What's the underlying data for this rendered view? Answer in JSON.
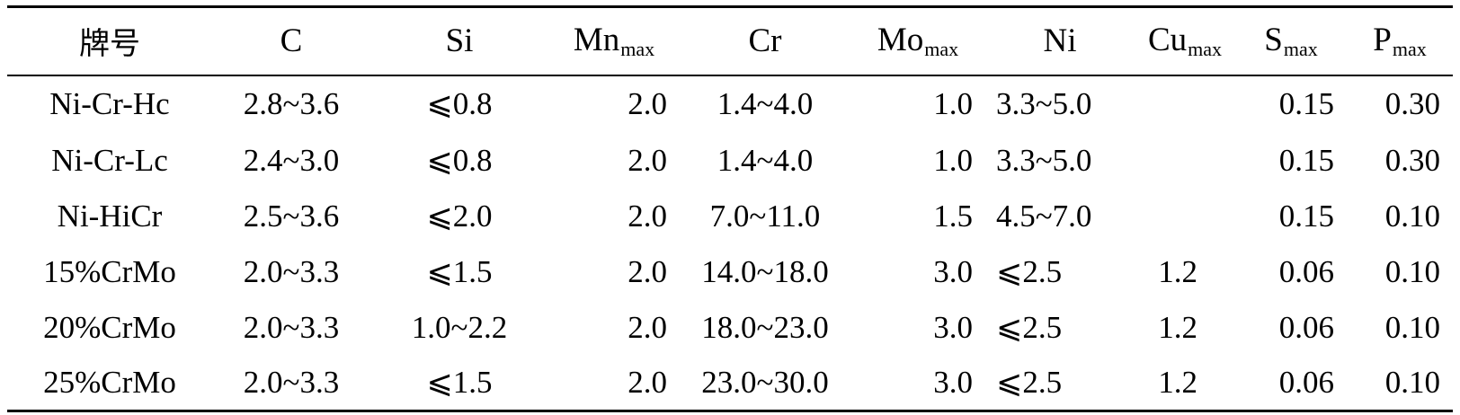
{
  "table": {
    "header": {
      "grade": "牌号",
      "c": "C",
      "si": "Si",
      "mn": "Mn",
      "mn_sub": "max",
      "cr": "Cr",
      "mo": "Mo",
      "mo_sub": "max",
      "ni": "Ni",
      "cu": "Cu",
      "cu_sub": "max",
      "s": "S",
      "s_sub": "max",
      "p": "P",
      "p_sub": "max"
    },
    "rows": [
      {
        "grade": "Ni-Cr-Hc",
        "c": "2.8~3.6",
        "si": "⩽0.8",
        "mn": "2.0",
        "cr": "1.4~4.0",
        "mo": "1.0",
        "ni": "3.3~5.0",
        "cu": "",
        "s": "0.15",
        "p": "0.30"
      },
      {
        "grade": "Ni-Cr-Lc",
        "c": "2.4~3.0",
        "si": "⩽0.8",
        "mn": "2.0",
        "cr": "1.4~4.0",
        "mo": "1.0",
        "ni": "3.3~5.0",
        "cu": "",
        "s": "0.15",
        "p": "0.30"
      },
      {
        "grade": "Ni-HiCr",
        "c": "2.5~3.6",
        "si": "⩽2.0",
        "mn": "2.0",
        "cr": "7.0~11.0",
        "mo": "1.5",
        "ni": "4.5~7.0",
        "cu": "",
        "s": "0.15",
        "p": "0.10"
      },
      {
        "grade": "15%CrMo",
        "c": "2.0~3.3",
        "si": "⩽1.5",
        "mn": "2.0",
        "cr": "14.0~18.0",
        "mo": "3.0",
        "ni": "⩽2.5",
        "cu": "1.2",
        "s": "0.06",
        "p": "0.10"
      },
      {
        "grade": "20%CrMo",
        "c": "2.0~3.3",
        "si": "1.0~2.2",
        "mn": "2.0",
        "cr": "18.0~23.0",
        "mo": "3.0",
        "ni": "⩽2.5",
        "cu": "1.2",
        "s": "0.06",
        "p": "0.10"
      },
      {
        "grade": "25%CrMo",
        "c": "2.0~3.3",
        "si": "⩽1.5",
        "mn": "2.0",
        "cr": "23.0~30.0",
        "mo": "3.0",
        "ni": "⩽2.5",
        "cu": "1.2",
        "s": "0.06",
        "p": "0.10"
      }
    ]
  }
}
